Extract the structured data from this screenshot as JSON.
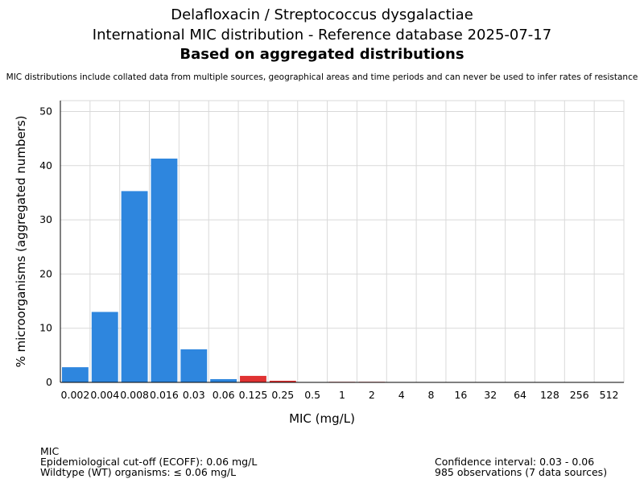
{
  "header": {
    "title_line1": "Delafloxacin / Streptococcus dysgalactiae",
    "title_line2": "International MIC distribution - Reference database 2025-07-17",
    "title_line3": "Based on aggregated distributions",
    "note": "MIC distributions include collated data from multiple sources, geographical areas and time periods and can never be used to infer rates of resistance"
  },
  "footer": {
    "left": [
      "MIC",
      "Epidemiological cut-off (ECOFF): 0.06 mg/L",
      "Wildtype (WT) organisms: ≤ 0.06 mg/L"
    ],
    "right": [
      "Confidence interval: 0.03 - 0.06",
      "985 observations (7 data sources)"
    ]
  },
  "chart_data": {
    "type": "bar",
    "xlabel": "MIC (mg/L)",
    "ylabel": "% microorganisms (aggregated numbers)",
    "ylim": [
      0,
      52
    ],
    "yticks": [
      0,
      10,
      20,
      30,
      40,
      50
    ],
    "grid": true,
    "categories": [
      "0.002",
      "0.004",
      "0.008",
      "0.016",
      "0.03",
      "0.06",
      "0.125",
      "0.25",
      "0.5",
      "1",
      "2",
      "4",
      "8",
      "16",
      "32",
      "64",
      "128",
      "256",
      "512"
    ],
    "values": [
      2.8,
      13.0,
      35.3,
      41.3,
      6.1,
      0.6,
      1.2,
      0.3,
      0,
      0.1,
      0.1,
      0,
      0,
      0,
      0,
      0,
      0,
      0,
      0
    ],
    "bar_colors": [
      "#2e86de",
      "#2e86de",
      "#2e86de",
      "#2e86de",
      "#2e86de",
      "#2e86de",
      "#e03232",
      "#e03232",
      "#e03232",
      "#e03232",
      "#e03232",
      "#e03232",
      "#e03232",
      "#e03232",
      "#e03232",
      "#e03232",
      "#e03232",
      "#e03232",
      "#e03232"
    ],
    "colors": {
      "wildtype": "#2e86de",
      "non_wildtype": "#e03232",
      "grid": "#d9d9d9"
    }
  }
}
